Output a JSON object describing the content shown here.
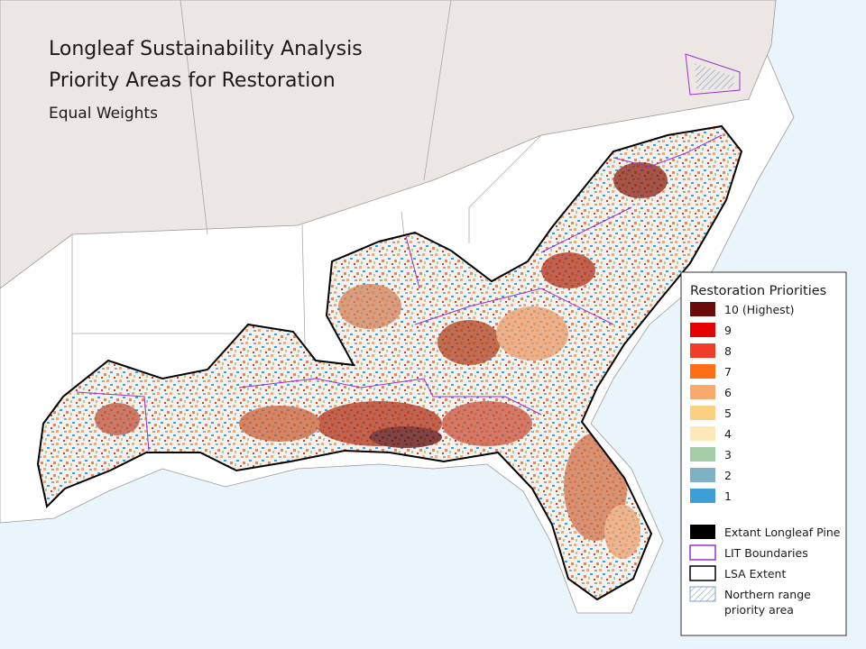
{
  "title": [
    "Longleaf Sustainability Analysis",
    "Priority Areas for Restoration"
  ],
  "subtitle": "Equal Weights",
  "legend": {
    "title": "Restoration Priorities",
    "priority_classes": [
      {
        "label": "10 (Highest)",
        "color": "#6b0a0a"
      },
      {
        "label": "9",
        "color": "#e60000"
      },
      {
        "label": "8",
        "color": "#f03c28"
      },
      {
        "label": "7",
        "color": "#ff6e14"
      },
      {
        "label": "6",
        "color": "#f7a86a"
      },
      {
        "label": "5",
        "color": "#fcd080"
      },
      {
        "label": "4",
        "color": "#fde9b8"
      },
      {
        "label": "3",
        "color": "#a5cca8"
      },
      {
        "label": "2",
        "color": "#7fb0c4"
      },
      {
        "label": "1",
        "color": "#3d9fd6"
      }
    ],
    "layers": [
      {
        "label": [
          "Extant Longleaf Pine"
        ],
        "style": "solid",
        "color": "#000000"
      },
      {
        "label": [
          "LIT Boundaries"
        ],
        "style": "outline",
        "color": "#9b30c8"
      },
      {
        "label": [
          "LSA Extent"
        ],
        "style": "outline",
        "color": "#000000"
      },
      {
        "label": [
          "Northern range",
          "priority area"
        ],
        "style": "hatch",
        "color": "#7fa0c4"
      }
    ]
  }
}
